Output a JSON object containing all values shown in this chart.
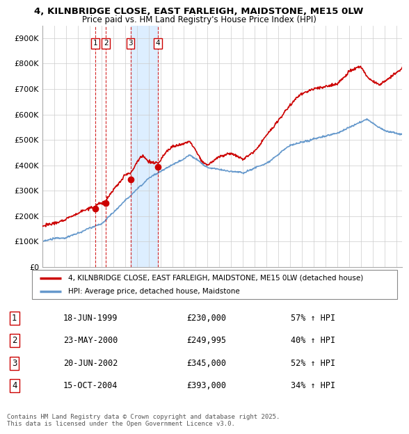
{
  "title_line1": "4, KILNBRIDGE CLOSE, EAST FARLEIGH, MAIDSTONE, ME15 0LW",
  "title_line2": "Price paid vs. HM Land Registry's House Price Index (HPI)",
  "ylim": [
    0,
    950000
  ],
  "yticks": [
    0,
    100000,
    200000,
    300000,
    400000,
    500000,
    600000,
    700000,
    800000,
    900000
  ],
  "ytick_labels": [
    "£0",
    "£100K",
    "£200K",
    "£300K",
    "£400K",
    "£500K",
    "£600K",
    "£700K",
    "£800K",
    "£900K"
  ],
  "sale_dates": [
    1999.46,
    2000.39,
    2002.46,
    2004.79
  ],
  "sale_prices": [
    230000,
    249995,
    345000,
    393000
  ],
  "sale_labels": [
    "1",
    "2",
    "3",
    "4"
  ],
  "legend_line1": "4, KILNBRIDGE CLOSE, EAST FARLEIGH, MAIDSTONE, ME15 0LW (detached house)",
  "legend_line2": "HPI: Average price, detached house, Maidstone",
  "table_rows": [
    [
      "1",
      "18-JUN-1999",
      "£230,000",
      "57% ↑ HPI"
    ],
    [
      "2",
      "23-MAY-2000",
      "£249,995",
      "40% ↑ HPI"
    ],
    [
      "3",
      "20-JUN-2002",
      "£345,000",
      "52% ↑ HPI"
    ],
    [
      "4",
      "15-OCT-2004",
      "£393,000",
      "34% ↑ HPI"
    ]
  ],
  "footer": "Contains HM Land Registry data © Crown copyright and database right 2025.\nThis data is licensed under the Open Government Licence v3.0.",
  "red_color": "#cc0000",
  "blue_color": "#6699cc",
  "shade_color": "#ddeeff",
  "bg_color": "#ffffff",
  "grid_color": "#cccccc",
  "xmin": 1995,
  "xmax": 2025.5
}
